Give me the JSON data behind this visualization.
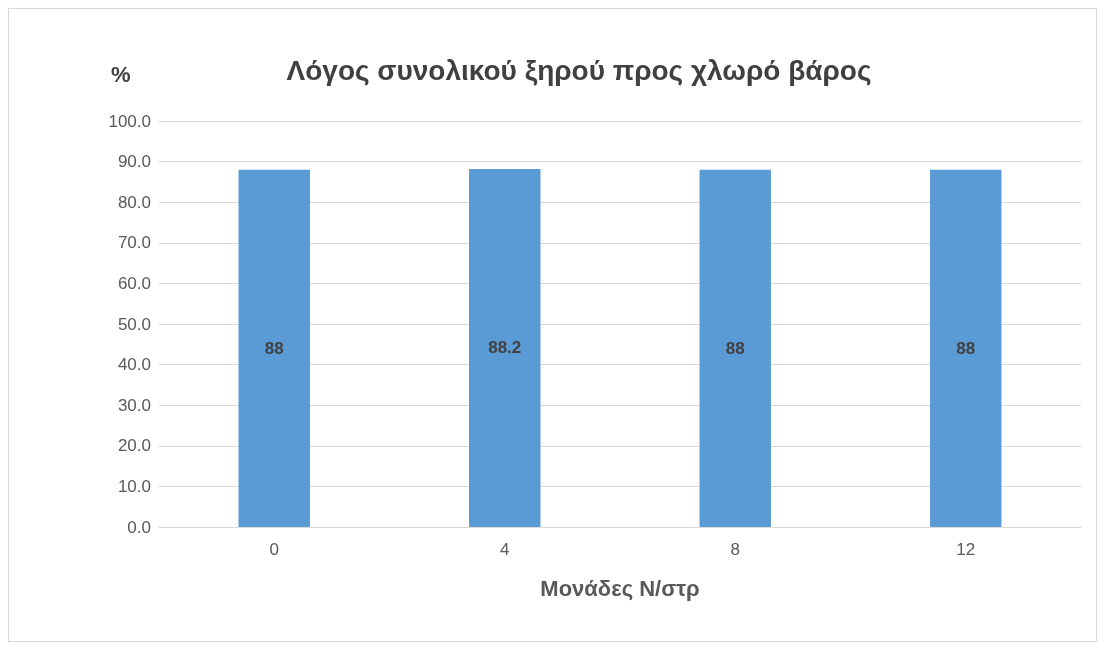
{
  "chart_data": {
    "type": "bar",
    "title": "Λόγος συνολικού ξηρού προς χλωρό βάρος",
    "xlabel": "Μονάδες Ν/στρ",
    "ylabel": "%",
    "categories": [
      "0",
      "4",
      "8",
      "12"
    ],
    "values": [
      88,
      88.2,
      88,
      88
    ],
    "color": "#5b9bd5",
    "ylim": [
      0,
      100
    ],
    "yticks": [
      {
        "value": 0,
        "label": "0.0"
      },
      {
        "value": 10,
        "label": "10.0"
      },
      {
        "value": 20,
        "label": "20.0"
      },
      {
        "value": 30,
        "label": "30.0"
      },
      {
        "value": 40,
        "label": "40.0"
      },
      {
        "value": 50,
        "label": "50.0"
      },
      {
        "value": 60,
        "label": "60.0"
      },
      {
        "value": 70,
        "label": "70.0"
      },
      {
        "value": 80,
        "label": "80.0"
      },
      {
        "value": 90,
        "label": "90.0"
      },
      {
        "value": 100,
        "label": "100.0"
      }
    ],
    "grid": "y",
    "data_labels": true
  }
}
